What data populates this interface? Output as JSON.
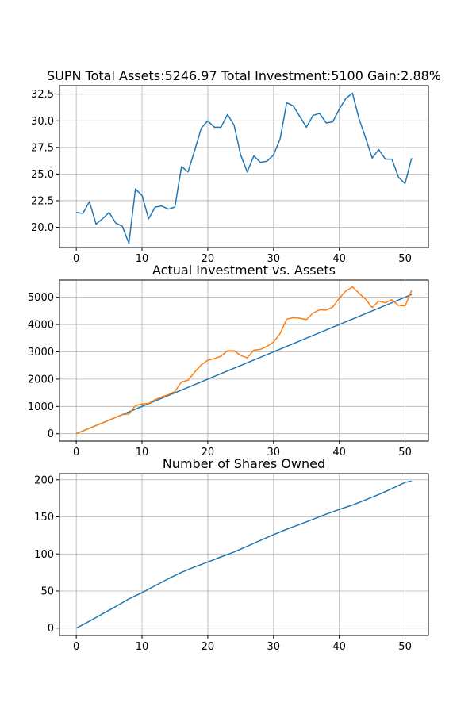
{
  "colors": {
    "series_blue": "#1f77b4",
    "series_orange": "#ff7f0e",
    "grid": "#b0b0b0"
  },
  "chart_data": [
    {
      "type": "line",
      "title": "SUPN Total Assets:5246.97  Total Investment:5100  Gain:2.88%",
      "xlim": [
        -2.55,
        53.55
      ],
      "ylim": [
        18.1,
        33.3
      ],
      "xticks": [
        0,
        10,
        20,
        30,
        40,
        50
      ],
      "xtick_labels": [
        "0",
        "10",
        "20",
        "30",
        "40",
        "50"
      ],
      "yticks": [
        20.0,
        22.5,
        25.0,
        27.5,
        30.0,
        32.5
      ],
      "ytick_labels": [
        "20.0",
        "22.5",
        "25.0",
        "27.5",
        "30.0",
        "32.5"
      ],
      "grid": true,
      "series": [
        {
          "color": "#1f77b4",
          "x": [
            0,
            1,
            2,
            3,
            4,
            5,
            6,
            7,
            8,
            9,
            10,
            11,
            12,
            13,
            14,
            15,
            16,
            17,
            18,
            19,
            20,
            21,
            22,
            23,
            24,
            25,
            26,
            27,
            28,
            29,
            30,
            31,
            32,
            33,
            34,
            35,
            36,
            37,
            38,
            39,
            40,
            41,
            42,
            43,
            44,
            45,
            46,
            47,
            48,
            49,
            50,
            51
          ],
          "y": [
            21.4,
            21.3,
            22.4,
            20.3,
            20.8,
            21.4,
            20.4,
            20.1,
            18.5,
            23.6,
            23.0,
            20.8,
            21.9,
            22.0,
            21.7,
            21.9,
            25.7,
            25.2,
            27.2,
            29.3,
            30.0,
            29.4,
            29.4,
            30.6,
            29.6,
            26.8,
            25.2,
            26.7,
            26.1,
            26.2,
            26.8,
            28.3,
            31.7,
            31.4,
            30.4,
            29.4,
            30.5,
            30.7,
            29.8,
            29.9,
            31.1,
            32.1,
            32.6,
            30.2,
            28.4,
            26.5,
            27.3,
            26.4,
            26.4,
            24.7,
            24.1,
            26.5
          ]
        }
      ]
    },
    {
      "type": "line",
      "title": "Actual Investment vs. Assets",
      "xlim": [
        -2.55,
        53.55
      ],
      "ylim": [
        -270,
        5630
      ],
      "xticks": [
        0,
        10,
        20,
        30,
        40,
        50
      ],
      "xtick_labels": [
        "0",
        "10",
        "20",
        "30",
        "40",
        "50"
      ],
      "yticks": [
        0,
        1000,
        2000,
        3000,
        4000,
        5000
      ],
      "ytick_labels": [
        "0",
        "1000",
        "2000",
        "3000",
        "4000",
        "5000"
      ],
      "grid": true,
      "series": [
        {
          "color": "#1f77b4",
          "x": [
            0,
            51
          ],
          "y": [
            0,
            5100
          ]
        },
        {
          "color": "#ff7f0e",
          "x": [
            0,
            1,
            2,
            3,
            4,
            5,
            6,
            7,
            8,
            9,
            10,
            11,
            12,
            13,
            14,
            15,
            16,
            17,
            18,
            19,
            20,
            21,
            22,
            23,
            24,
            25,
            26,
            27,
            28,
            29,
            30,
            31,
            32,
            33,
            34,
            35,
            36,
            37,
            38,
            39,
            40,
            41,
            42,
            43,
            44,
            45,
            46,
            47,
            48,
            49,
            50,
            51
          ],
          "y": [
            0,
            100,
            200,
            300,
            400,
            500,
            600,
            700,
            720,
            1030,
            1090,
            1110,
            1250,
            1350,
            1430,
            1550,
            1900,
            1960,
            2250,
            2520,
            2690,
            2750,
            2840,
            3040,
            3040,
            2870,
            2780,
            3060,
            3090,
            3200,
            3360,
            3670,
            4200,
            4250,
            4230,
            4180,
            4420,
            4540,
            4530,
            4640,
            4970,
            5230,
            5380,
            5150,
            4930,
            4620,
            4860,
            4800,
            4910,
            4700,
            4680,
            5250
          ]
        }
      ]
    },
    {
      "type": "line",
      "title": "Number of Shares Owned",
      "xlim": [
        -2.55,
        53.55
      ],
      "ylim": [
        -9.9,
        208.3
      ],
      "xticks": [
        0,
        10,
        20,
        30,
        40,
        50
      ],
      "xtick_labels": [
        "0",
        "10",
        "20",
        "30",
        "40",
        "50"
      ],
      "yticks": [
        0,
        50,
        100,
        150,
        200
      ],
      "ytick_labels": [
        "0",
        "50",
        "100",
        "150",
        "200"
      ],
      "grid": true,
      "series": [
        {
          "color": "#1f77b4",
          "x": [
            0,
            2,
            4,
            6,
            8,
            10,
            12,
            14,
            16,
            18,
            20,
            22,
            24,
            26,
            28,
            30,
            32,
            34,
            36,
            38,
            40,
            42,
            44,
            46,
            48,
            50,
            51
          ],
          "y": [
            0,
            9.3,
            19.3,
            29.1,
            39.4,
            47.8,
            57.2,
            66.6,
            75.2,
            82.5,
            89.1,
            96.0,
            102.6,
            110.3,
            118.3,
            126.0,
            133.3,
            139.9,
            146.7,
            153.7,
            160.0,
            165.9,
            172.9,
            180.2,
            188.0,
            196.5,
            198.2
          ]
        }
      ]
    }
  ]
}
